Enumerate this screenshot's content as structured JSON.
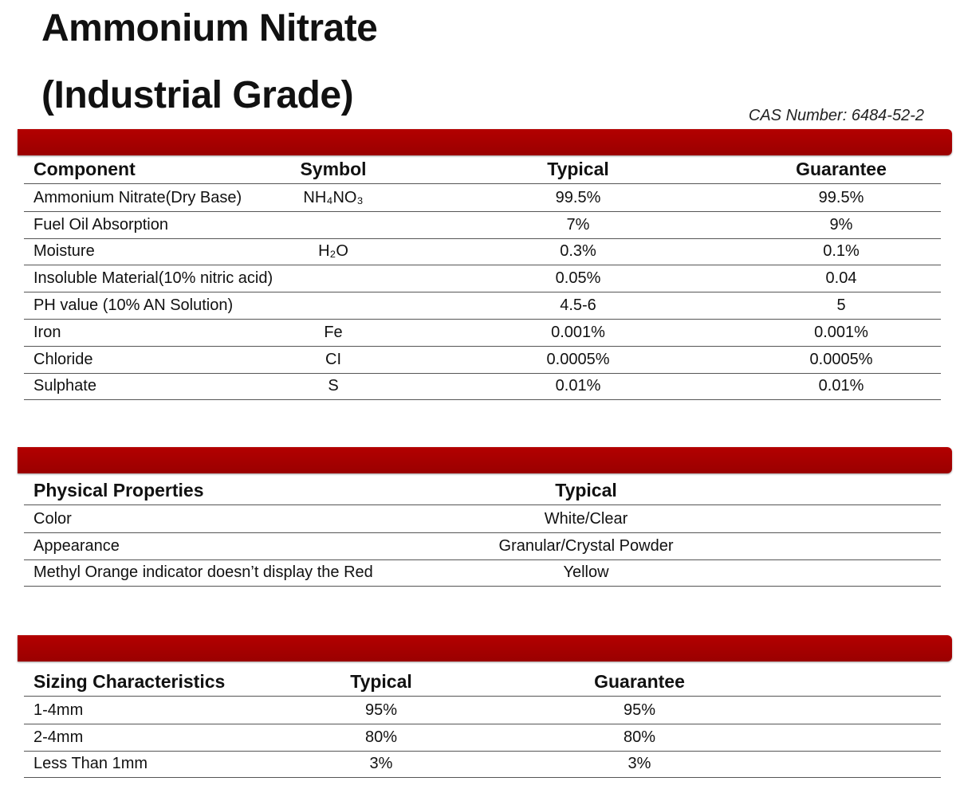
{
  "header": {
    "title_line_1": "Ammonium Nitrate",
    "title_line_2": "(Industrial Grade)",
    "cas_number": "CAS Number: 6484-52-2"
  },
  "tables": [
    {
      "columns": [
        "Component",
        "Symbol",
        "Typical",
        "Guarantee"
      ],
      "rows": [
        [
          "Ammonium Nitrate(Dry Base)",
          "NH₄NO₃",
          "99.5%",
          "99.5%"
        ],
        [
          "Fuel Oil Absorption",
          null,
          "7%",
          "9%"
        ],
        [
          "Moisture",
          "H₂O",
          "0.3%",
          "0.1%"
        ],
        [
          "Insoluble Material(10% nitric acid)",
          null,
          "0.05%",
          "0.04"
        ],
        [
          "PH value (10% AN Solution)",
          null,
          "4.5-6",
          "5"
        ],
        [
          "Iron",
          "Fe",
          "0.001%",
          "0.001%"
        ],
        [
          "Chloride",
          "CI",
          "0.0005%",
          "0.0005%"
        ],
        [
          "Sulphate",
          "S",
          "0.01%",
          "0.01%"
        ]
      ]
    },
    {
      "columns": [
        "Physical Properties",
        "Typical"
      ],
      "rows": [
        [
          "Color",
          "White/Clear"
        ],
        [
          "Appearance",
          "Granular/Crystal Powder"
        ],
        [
          "Methyl Orange indicator doesn’t display the Red",
          "Yellow"
        ]
      ]
    },
    {
      "columns": [
        "Sizing Characteristics",
        "Typical",
        "Guarantee"
      ],
      "rows": [
        [
          "1-4mm",
          "95%",
          "95%"
        ],
        [
          "2-4mm",
          "80%",
          "80%"
        ],
        [
          "Less Than 1mm",
          "3%",
          "3%"
        ]
      ]
    }
  ]
}
